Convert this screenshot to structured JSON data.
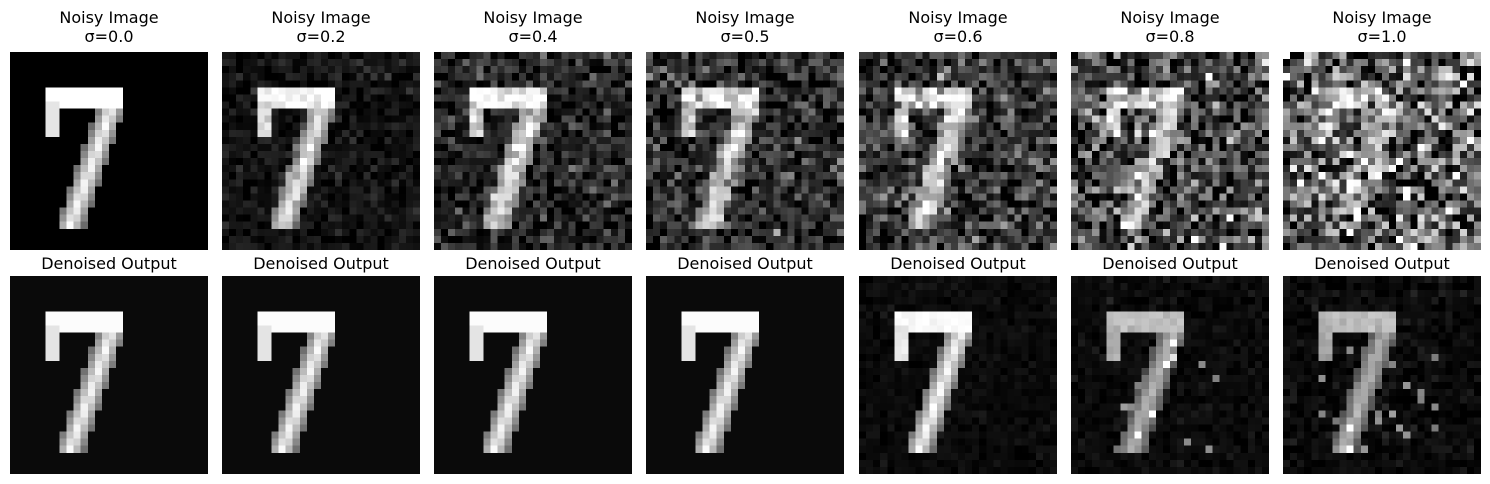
{
  "figure": {
    "columns": [
      {
        "noisy_title": "Noisy Image",
        "sigma_label": "σ=0.0",
        "sigma": 0.0,
        "denoised_title": "Denoised Output"
      },
      {
        "noisy_title": "Noisy Image",
        "sigma_label": "σ=0.2",
        "sigma": 0.2,
        "denoised_title": "Denoised Output"
      },
      {
        "noisy_title": "Noisy Image",
        "sigma_label": "σ=0.4",
        "sigma": 0.4,
        "denoised_title": "Denoised Output"
      },
      {
        "noisy_title": "Noisy Image",
        "sigma_label": "σ=0.5",
        "sigma": 0.5,
        "denoised_title": "Denoised Output"
      },
      {
        "noisy_title": "Noisy Image",
        "sigma_label": "σ=0.6",
        "sigma": 0.6,
        "denoised_title": "Denoised Output"
      },
      {
        "noisy_title": "Noisy Image",
        "sigma_label": "σ=0.8",
        "sigma": 0.8,
        "denoised_title": "Denoised Output"
      },
      {
        "noisy_title": "Noisy Image",
        "sigma_label": "σ=1.0",
        "sigma": 1.0,
        "denoised_title": "Denoised Output"
      }
    ]
  },
  "colors": {
    "background": "#ffffff",
    "digit": "#ffffff",
    "image_background": "#000000"
  }
}
